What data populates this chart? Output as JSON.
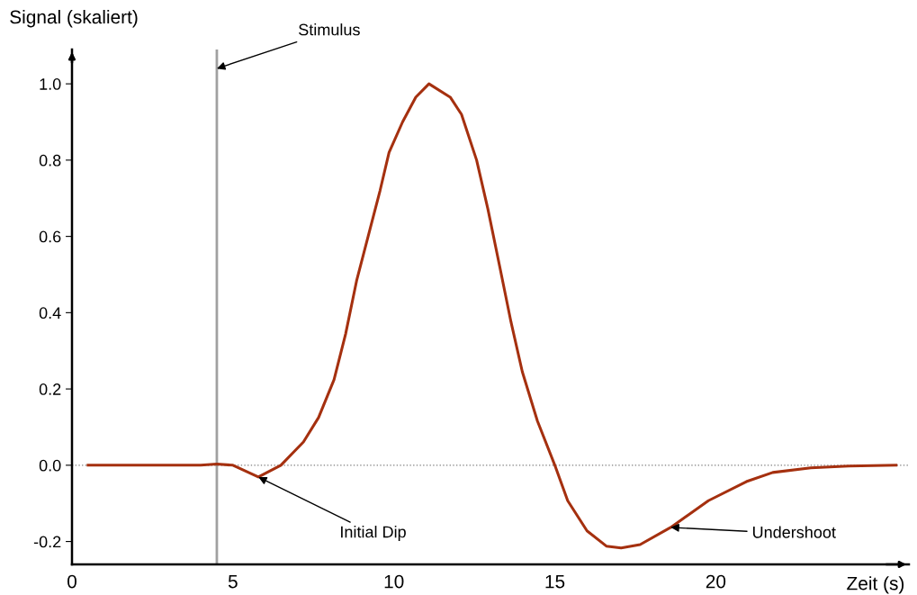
{
  "chart_data": {
    "type": "line",
    "xlabel": "Zeit (s)",
    "ylabel": "Signal (skaliert)",
    "x": [
      0.5,
      4.0,
      4.5,
      5.0,
      5.79,
      6.49,
      7.19,
      7.66,
      8.14,
      8.5,
      8.84,
      9.2,
      9.57,
      9.85,
      10.27,
      10.68,
      11.09,
      11.75,
      12.1,
      12.57,
      12.92,
      13.29,
      13.64,
      13.99,
      14.46,
      15.0,
      15.4,
      16.0,
      16.6,
      17.06,
      17.65,
      18.6,
      19.77,
      20.95,
      21.77,
      22.95,
      24.13,
      25.6
    ],
    "series": [
      {
        "color": "#a5300f",
        "values": [
          0.0,
          0.0,
          0.003,
          0.0,
          -0.031,
          0.0,
          0.061,
          0.125,
          0.224,
          0.344,
          0.483,
          0.6,
          0.72,
          0.82,
          0.9,
          0.965,
          1.0,
          0.965,
          0.92,
          0.8,
          0.672,
          0.52,
          0.375,
          0.245,
          0.116,
          0.0,
          -0.093,
          -0.172,
          -0.212,
          -0.217,
          -0.208,
          -0.163,
          -0.093,
          -0.043,
          -0.019,
          -0.007,
          -0.002,
          0.0
        ]
      }
    ],
    "xlim": [
      0,
      26
    ],
    "ylim": [
      -0.26,
      1.09
    ],
    "xticks": [
      0,
      5,
      10,
      15,
      20
    ],
    "yticks": [
      {
        "value": -0.2,
        "label": "-0.2"
      },
      {
        "value": 0,
        "label": "0.0"
      },
      {
        "value": 0.2,
        "label": "0.2"
      },
      {
        "value": 0.4,
        "label": "0.4"
      },
      {
        "value": 0.6,
        "label": "0.6"
      },
      {
        "value": 0.8,
        "label": "0.8"
      },
      {
        "value": 1.0,
        "label": "1.0"
      }
    ],
    "ref_lines": [
      {
        "axis": "x",
        "value": 4.5,
        "color": "#a0a0a0",
        "line_style": "solid"
      },
      {
        "axis": "y",
        "value": 0,
        "color": "#808080",
        "line_style": "dotted"
      }
    ],
    "annotations": [
      {
        "text": "Stimulus",
        "x": 4.5,
        "y": 1.04
      },
      {
        "text": "Initial Dip",
        "x": 5.79,
        "y": -0.031
      },
      {
        "text": "Undershoot",
        "x": 18.6,
        "y": -0.163
      }
    ],
    "grid": false,
    "legend": false,
    "marker": "none",
    "line_style": "solid"
  }
}
